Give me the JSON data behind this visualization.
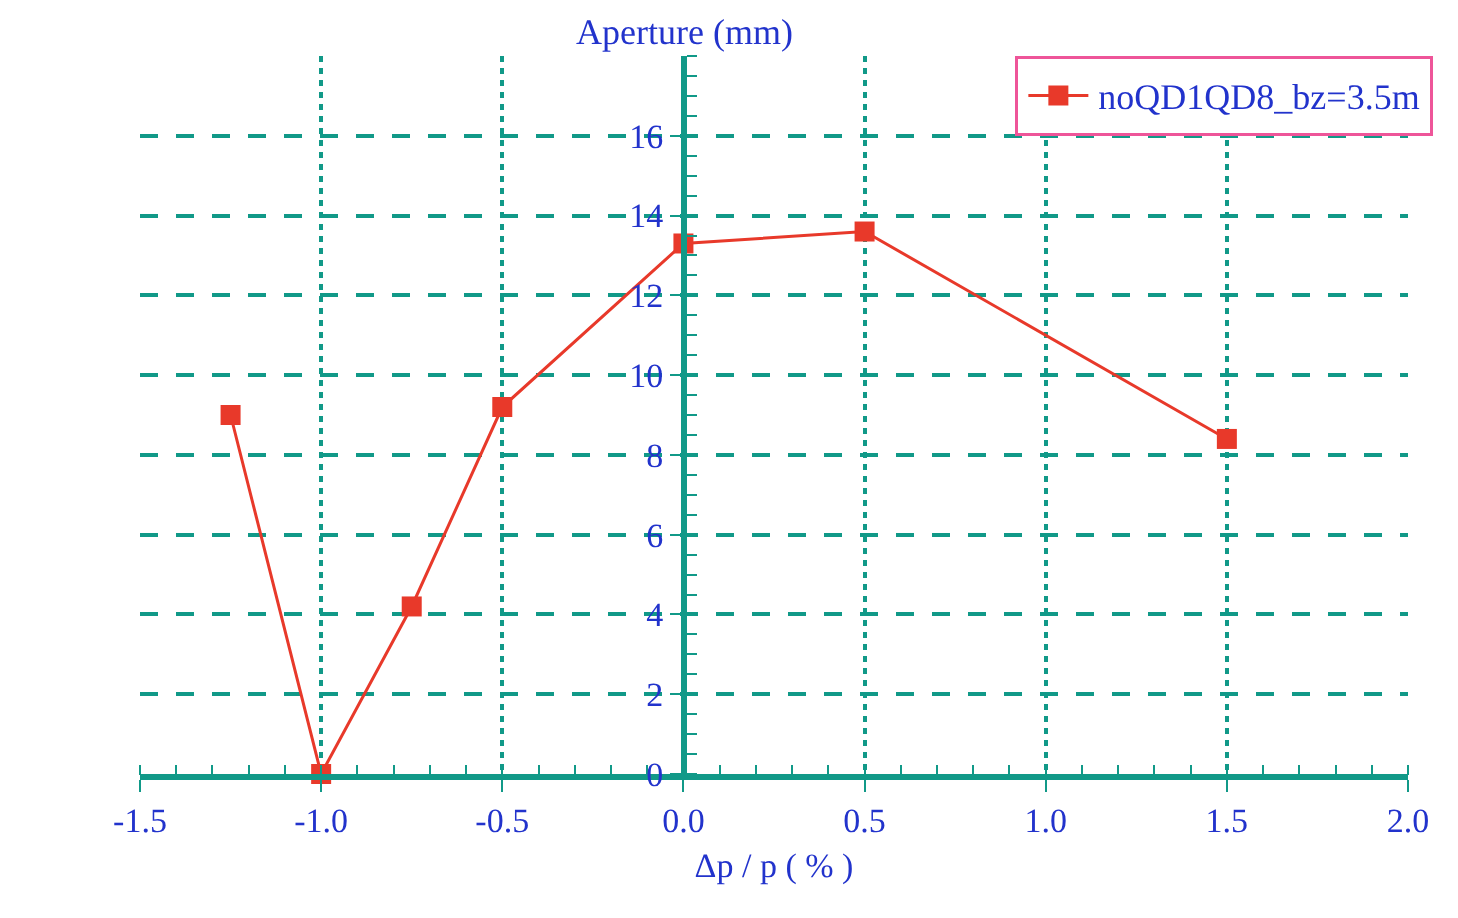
{
  "chart_data": {
    "type": "line",
    "xlabel": "Δp / p ( % )",
    "ylabel": "Aperture (mm)",
    "x": [
      -1.25,
      -1.0,
      -0.75,
      -0.5,
      0.0,
      0.5,
      1.5
    ],
    "series": [
      {
        "name": "noQD1QD8_bz=3.5m",
        "color": "#e8392a",
        "values": [
          9.0,
          0.0,
          4.2,
          9.2,
          13.3,
          13.6,
          8.4
        ]
      }
    ],
    "xlim": [
      -1.5,
      2.0
    ],
    "xticks": [
      -1.5,
      {
        "value": -1.0,
        "label": "-1.0"
      },
      -0.5,
      {
        "value": 0.0,
        "label": "0.0"
      },
      0.5,
      {
        "value": 1.0,
        "label": "1.0"
      },
      1.5,
      {
        "value": 2.0,
        "label": "2.0"
      }
    ],
    "ylim": [
      0,
      18
    ],
    "yticks": [
      0,
      2,
      4,
      6,
      8,
      10,
      12,
      14,
      16
    ],
    "grid": true,
    "legend": "top right",
    "marker": "square",
    "line_style": "solid"
  }
}
